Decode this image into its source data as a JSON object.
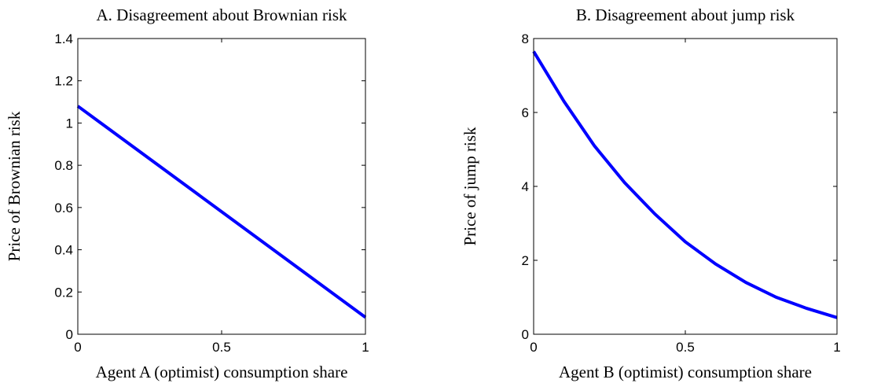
{
  "chart_data": [
    {
      "type": "line",
      "title": "A. Disagreement about Brownian risk",
      "x_label": "Agent A (optimist) consumption share",
      "y_label": "Price of Brownian risk",
      "x": [
        0,
        1
      ],
      "series": [
        {
          "color": "#0000ff",
          "style": "solid",
          "values": [
            1.08,
            0.08
          ]
        }
      ],
      "xlim": [
        0,
        1
      ],
      "xticks": [
        0,
        0.5,
        1
      ],
      "ylim": [
        0,
        1.4
      ],
      "yticks": [
        0,
        0.2,
        0.4,
        0.6,
        0.8,
        1,
        1.2,
        1.4
      ],
      "grid": false
    },
    {
      "type": "line",
      "title": "B. Disagreement about jump risk",
      "x_label": "Agent B (optimist) consumption share",
      "y_label": "Price of jump risk",
      "x": [
        0,
        0.1,
        0.2,
        0.3,
        0.4,
        0.5,
        0.6,
        0.7,
        0.8,
        0.9,
        1
      ],
      "series": [
        {
          "color": "#0000ff",
          "style": "solid",
          "values": [
            7.65,
            6.3,
            5.1,
            4.1,
            3.25,
            2.5,
            1.9,
            1.4,
            1.0,
            0.7,
            0.45
          ]
        },
        {
          "color": "#ff0000",
          "style": "dashed",
          "values": [
            7.65,
            null,
            null,
            null,
            null,
            null,
            null,
            null,
            null,
            null,
            0.45
          ]
        }
      ],
      "xlim": [
        0,
        1
      ],
      "xticks": [
        0,
        0.5,
        1
      ],
      "ylim": [
        0,
        8
      ],
      "yticks": [
        0,
        2,
        4,
        6,
        8
      ],
      "grid": false
    }
  ]
}
